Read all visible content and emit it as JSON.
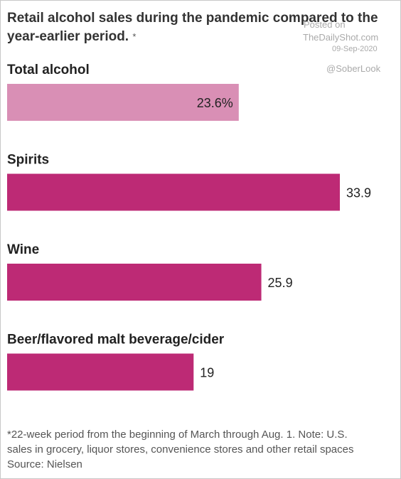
{
  "chart_data": {
    "type": "bar",
    "orientation": "horizontal",
    "title": "Retail alcohol sales during the pandemic compared to the year-earlier period.",
    "title_marker": "*",
    "categories": [
      "Total alcohol",
      "Spirits",
      "Wine",
      "Beer/flavored malt beverage/cider"
    ],
    "values": [
      23.6,
      33.9,
      25.9,
      19
    ],
    "value_labels": [
      "23.6%",
      "33.9",
      "25.9",
      "19"
    ],
    "colors": [
      "#d98fb5",
      "#bd2a75",
      "#bd2a75",
      "#bd2a75"
    ],
    "xlim": [
      0,
      35
    ],
    "grid": false,
    "footnote_lines": [
      "*22-week period from the beginning of March through Aug. 1. Note: U.S.",
      "sales in grocery, liquor stores, convenience stores and other retail spaces",
      "Source: Nielsen"
    ]
  },
  "watermark": {
    "posted": "Posted on",
    "site": "TheDailyShot.com",
    "date": "09-Sep-2020",
    "handle": "@SoberLook"
  }
}
